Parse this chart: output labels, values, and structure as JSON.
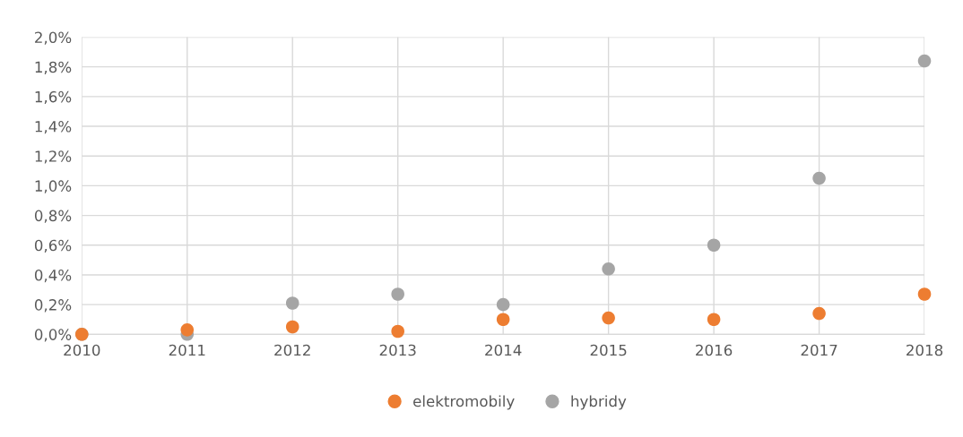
{
  "chart_data": {
    "type": "scatter",
    "x": [
      2010,
      2011,
      2012,
      2013,
      2014,
      2015,
      2016,
      2017,
      2018
    ],
    "series": [
      {
        "name": "elektromobily",
        "color": "#ed7d31",
        "values": [
          0.0,
          0.03,
          0.05,
          0.02,
          0.1,
          0.11,
          0.1,
          0.14,
          0.27
        ]
      },
      {
        "name": "hybridy",
        "color": "#a5a5a5",
        "values": [
          0.0,
          0.0,
          0.21,
          0.27,
          0.2,
          0.44,
          0.6,
          1.05,
          1.84
        ]
      }
    ],
    "xlim": [
      2010,
      2018
    ],
    "xticks": [
      2010,
      2011,
      2012,
      2013,
      2014,
      2015,
      2016,
      2017,
      2018
    ],
    "ylim": [
      0,
      2.0
    ],
    "yticks": [
      {
        "value": 0,
        "label": "0,0%"
      },
      {
        "value": 0.2,
        "label": "0,2%"
      },
      {
        "value": 0.4,
        "label": "0,4%"
      },
      {
        "value": 0.6,
        "label": "0,6%"
      },
      {
        "value": 0.8,
        "label": "0,8%"
      },
      {
        "value": 1.0,
        "label": "1,0%"
      },
      {
        "value": 1.2,
        "label": "1,2%"
      },
      {
        "value": 1.4,
        "label": "1,4%"
      },
      {
        "value": 1.6,
        "label": "1,6%"
      },
      {
        "value": 1.8,
        "label": "1,8%"
      },
      {
        "value": 2.0,
        "label": "2,0%"
      }
    ],
    "grid": true,
    "legend": "bottom",
    "marker": "circle"
  }
}
